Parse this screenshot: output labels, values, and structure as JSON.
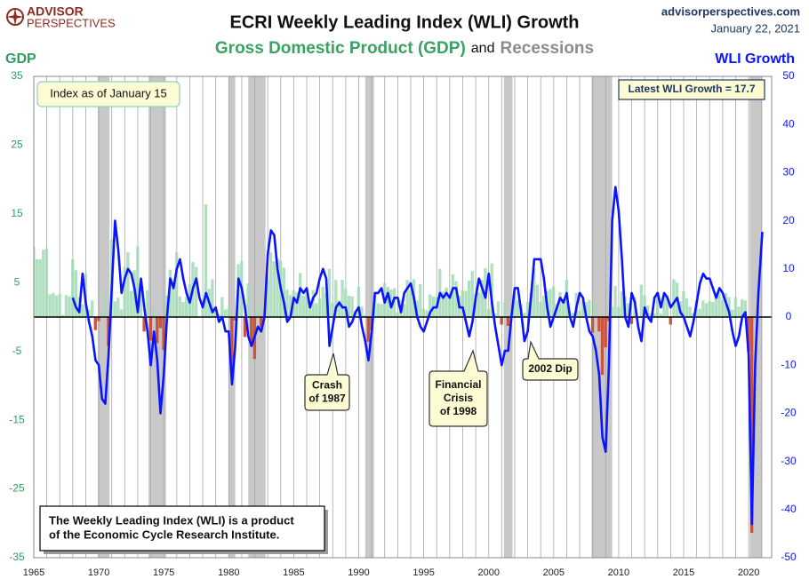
{
  "header": {
    "logo": [
      "ADVISOR",
      "PERSPECTIVES"
    ],
    "site": "advisorperspectives.com",
    "date": "January 22, 2021"
  },
  "chart_data": {
    "type": "combo",
    "title": "ECRI Weekly Leading Index (WLI) Growth",
    "subtitle": [
      "Gross Domestic Product (GDP)",
      "and",
      "Recessions"
    ],
    "xlim": [
      1965,
      2021.77
    ],
    "xticks": [
      1965,
      1970,
      1975,
      1980,
      1985,
      1990,
      1995,
      2000,
      2005,
      2010,
      2015,
      2020
    ],
    "x_grid": [
      1965,
      1966,
      1967,
      1968,
      1969,
      1970,
      1971,
      1972,
      1973,
      1974,
      1975,
      1976,
      1977,
      1978,
      1979,
      1980,
      1981,
      1982,
      1983,
      1984,
      1985,
      1986,
      1987,
      1988,
      1989,
      1990,
      1991,
      1992,
      1993,
      1994,
      1995,
      1996,
      1997,
      1998,
      1999,
      2000,
      2001,
      2002,
      2003,
      2004,
      2005,
      2006,
      2007,
      2008,
      2009,
      2010,
      2011,
      2012,
      2013,
      2014,
      2015,
      2016,
      2017,
      2018,
      2019,
      2020,
      2021
    ],
    "ylim": [
      -35,
      35
    ],
    "yticks": [
      -35,
      -25,
      -15,
      -5,
      5,
      15,
      25,
      35
    ],
    "y2lim": [
      -50,
      50
    ],
    "y2ticks": [
      -50,
      -40,
      -30,
      -20,
      -10,
      0,
      10,
      20,
      30,
      40,
      50
    ],
    "recessions": {
      "color": "#c8c8c8",
      "spans": [
        [
          1969.92,
          1970.83
        ],
        [
          1973.83,
          1975.17
        ],
        [
          1980.0,
          1980.5
        ],
        [
          1981.5,
          1982.83
        ],
        [
          1990.5,
          1991.17
        ],
        [
          2001.17,
          2001.83
        ],
        [
          2007.92,
          2009.5
        ],
        [
          2020.08,
          2021.05
        ]
      ]
    },
    "series": [
      {
        "name": "GDP",
        "type": "bar",
        "color": "#a3dbb5",
        "negative_color": "#c9553e",
        "x": [
          1965,
          1965.25,
          1965.5,
          1965.75,
          1966,
          1966.25,
          1966.5,
          1966.75,
          1967,
          1967.25,
          1967.5,
          1967.75,
          1968,
          1968.25,
          1968.5,
          1968.75,
          1969,
          1969.25,
          1969.5,
          1969.75,
          1970,
          1970.25,
          1970.5,
          1970.75,
          1971,
          1971.25,
          1971.5,
          1971.75,
          1972,
          1972.25,
          1972.5,
          1972.75,
          1973,
          1973.25,
          1973.5,
          1973.75,
          1974,
          1974.25,
          1974.5,
          1974.75,
          1975,
          1975.25,
          1975.5,
          1975.75,
          1976,
          1976.25,
          1976.5,
          1976.75,
          1977,
          1977.25,
          1977.5,
          1977.75,
          1978,
          1978.25,
          1978.5,
          1978.75,
          1979,
          1979.25,
          1979.5,
          1979.75,
          1980,
          1980.25,
          1980.5,
          1980.75,
          1981,
          1981.25,
          1981.5,
          1981.75,
          1982,
          1982.25,
          1982.5,
          1982.75,
          1983,
          1983.25,
          1983.5,
          1983.75,
          1984,
          1984.25,
          1984.5,
          1984.75,
          1985,
          1985.25,
          1985.5,
          1985.75,
          1986,
          1986.25,
          1986.5,
          1986.75,
          1987,
          1987.25,
          1987.5,
          1987.75,
          1988,
          1988.25,
          1988.5,
          1988.75,
          1989,
          1989.25,
          1989.5,
          1989.75,
          1990,
          1990.25,
          1990.5,
          1990.75,
          1991,
          1991.25,
          1991.5,
          1991.75,
          1992,
          1992.25,
          1992.5,
          1992.75,
          1993,
          1993.25,
          1993.5,
          1993.75,
          1994,
          1994.25,
          1994.5,
          1994.75,
          1995,
          1995.25,
          1995.5,
          1995.75,
          1996,
          1996.25,
          1996.5,
          1996.75,
          1997,
          1997.25,
          1997.5,
          1997.75,
          1998,
          1998.25,
          1998.5,
          1998.75,
          1999,
          1999.25,
          1999.5,
          1999.75,
          2000,
          2000.25,
          2000.5,
          2000.75,
          2001,
          2001.25,
          2001.5,
          2001.75,
          2002,
          2002.25,
          2002.5,
          2002.75,
          2003,
          2003.25,
          2003.5,
          2003.75,
          2004,
          2004.25,
          2004.5,
          2004.75,
          2005,
          2005.25,
          2005.5,
          2005.75,
          2006,
          2006.25,
          2006.5,
          2006.75,
          2007,
          2007.25,
          2007.5,
          2007.75,
          2008,
          2008.25,
          2008.5,
          2008.75,
          2009,
          2009.25,
          2009.5,
          2009.75,
          2010,
          2010.25,
          2010.5,
          2010.75,
          2011,
          2011.25,
          2011.5,
          2011.75,
          2012,
          2012.25,
          2012.5,
          2012.75,
          2013,
          2013.25,
          2013.5,
          2013.75,
          2014,
          2014.25,
          2014.5,
          2014.75,
          2015,
          2015.25,
          2015.5,
          2015.75,
          2016,
          2016.25,
          2016.5,
          2016.75,
          2017,
          2017.25,
          2017.5,
          2017.75,
          2018,
          2018.25,
          2018.5,
          2018.75,
          2019,
          2019.25,
          2019.5,
          2019.75,
          2020,
          2020.25
        ],
        "values": [
          10.2,
          8.4,
          8.4,
          9.8,
          10.0,
          3.3,
          3.5,
          3.1,
          3.4,
          0.3,
          3.2,
          3.0,
          8.4,
          6.8,
          2.9,
          1.8,
          6.3,
          1.1,
          2.4,
          -1.9,
          -0.6,
          0.6,
          3.6,
          -4.2,
          11.3,
          2.3,
          2.8,
          1.1,
          7.3,
          9.4,
          3.8,
          6.8,
          10.3,
          4.6,
          -2.1,
          3.9,
          -3.4,
          1.0,
          -3.8,
          -1.6,
          -4.8,
          3.1,
          6.9,
          5.3,
          9.4,
          3.0,
          2.2,
          2.9,
          4.8,
          8.0,
          7.3,
          0.0,
          1.3,
          16.4,
          4.1,
          5.5,
          0.8,
          0.4,
          2.9,
          1.1,
          1.3,
          -8.0,
          -0.5,
          7.7,
          8.1,
          -2.9,
          4.9,
          -4.3,
          -6.1,
          1.8,
          -1.5,
          0.2,
          5.4,
          9.4,
          8.1,
          8.5,
          8.2,
          7.2,
          4.0,
          3.2,
          3.9,
          3.6,
          6.4,
          3.1,
          3.9,
          1.6,
          3.9,
          2.0,
          2.7,
          4.4,
          3.5,
          7.0,
          2.1,
          5.4,
          2.4,
          5.4,
          4.1,
          3.1,
          3.0,
          0.8,
          4.4,
          1.5,
          0.3,
          -3.6,
          -1.9,
          3.2,
          2.0,
          1.9,
          4.9,
          4.4,
          4.0,
          4.2,
          0.7,
          2.5,
          1.9,
          5.4,
          3.9,
          5.5,
          2.4,
          4.8,
          1.2,
          1.0,
          3.3,
          3.0,
          2.9,
          7.0,
          3.7,
          4.3,
          3.1,
          6.2,
          5.2,
          3.1,
          3.9,
          3.8,
          5.3,
          6.7,
          3.4,
          3.6,
          5.4,
          7.1,
          1.2,
          7.8,
          0.5,
          2.3,
          -1.1,
          2.1,
          -1.3,
          1.1,
          3.5,
          2.4,
          1.8,
          0.6,
          2.2,
          3.5,
          7.0,
          4.7,
          2.2,
          3.1,
          3.8,
          4.1,
          4.5,
          1.9,
          3.6,
          2.6,
          5.4,
          0.9,
          0.6,
          3.5,
          0.9,
          2.3,
          2.2,
          2.5,
          -2.3,
          2.1,
          -2.1,
          -8.4,
          -4.4,
          -0.6,
          1.5,
          4.5,
          1.5,
          3.7,
          3.0,
          2.0,
          -1.0,
          2.9,
          -0.1,
          4.7,
          3.2,
          1.7,
          0.5,
          0.5,
          3.6,
          0.5,
          3.2,
          3.2,
          -1.1,
          5.5,
          5.0,
          2.3,
          3.8,
          2.7,
          1.5,
          0.6,
          2.4,
          1.2,
          2.4,
          2.0,
          2.3,
          2.2,
          3.2,
          3.5,
          2.5,
          3.5,
          2.9,
          1.1,
          2.9,
          1.5,
          2.6,
          2.4,
          -5.0,
          -31.4
        ]
      },
      {
        "name": "WLI Growth",
        "type": "line",
        "axis": "y2",
        "color": "#0a14ff",
        "x": [
          1968,
          1968.25,
          1968.5,
          1968.75,
          1969,
          1969.25,
          1969.5,
          1969.75,
          1970,
          1970.25,
          1970.5,
          1970.75,
          1971,
          1971.25,
          1971.5,
          1971.75,
          1972,
          1972.25,
          1972.5,
          1972.75,
          1973,
          1973.25,
          1973.5,
          1973.75,
          1974,
          1974.25,
          1974.5,
          1974.75,
          1975,
          1975.25,
          1975.5,
          1975.75,
          1976,
          1976.25,
          1976.5,
          1976.75,
          1977,
          1977.25,
          1977.5,
          1977.75,
          1978,
          1978.25,
          1978.5,
          1978.75,
          1979,
          1979.25,
          1979.5,
          1979.75,
          1980,
          1980.25,
          1980.5,
          1980.75,
          1981,
          1981.25,
          1981.5,
          1981.75,
          1982,
          1982.25,
          1982.5,
          1982.75,
          1983,
          1983.25,
          1983.5,
          1983.75,
          1984,
          1984.25,
          1984.5,
          1984.75,
          1985,
          1985.25,
          1985.5,
          1985.75,
          1986,
          1986.25,
          1986.5,
          1986.75,
          1987,
          1987.25,
          1987.5,
          1987.75,
          1988,
          1988.25,
          1988.5,
          1988.75,
          1989,
          1989.25,
          1989.5,
          1989.75,
          1990,
          1990.25,
          1990.5,
          1990.75,
          1991,
          1991.25,
          1991.5,
          1991.75,
          1992,
          1992.25,
          1992.5,
          1992.75,
          1993,
          1993.25,
          1993.5,
          1993.75,
          1994,
          1994.25,
          1994.5,
          1994.75,
          1995,
          1995.25,
          1995.5,
          1995.75,
          1996,
          1996.25,
          1996.5,
          1996.75,
          1997,
          1997.25,
          1997.5,
          1997.75,
          1998,
          1998.25,
          1998.5,
          1998.75,
          1999,
          1999.25,
          1999.5,
          1999.75,
          2000,
          2000.25,
          2000.5,
          2000.75,
          2001,
          2001.25,
          2001.5,
          2001.75,
          2002,
          2002.25,
          2002.5,
          2002.75,
          2003,
          2003.25,
          2003.5,
          2003.75,
          2004,
          2004.25,
          2004.5,
          2004.75,
          2005,
          2005.25,
          2005.5,
          2005.75,
          2006,
          2006.25,
          2006.5,
          2006.75,
          2007,
          2007.25,
          2007.5,
          2007.75,
          2008,
          2008.25,
          2008.5,
          2008.75,
          2009,
          2009.25,
          2009.5,
          2009.75,
          2010,
          2010.25,
          2010.5,
          2010.75,
          2011,
          2011.25,
          2011.5,
          2011.75,
          2012,
          2012.25,
          2012.5,
          2012.75,
          2013,
          2013.25,
          2013.5,
          2013.75,
          2014,
          2014.25,
          2014.5,
          2014.75,
          2015,
          2015.25,
          2015.5,
          2015.75,
          2016,
          2016.25,
          2016.5,
          2016.75,
          2017,
          2017.25,
          2017.5,
          2017.75,
          2018,
          2018.25,
          2018.5,
          2018.75,
          2019,
          2019.25,
          2019.5,
          2019.75,
          2020,
          2020.25,
          2020.5,
          2020.75,
          2021.05
        ],
        "values": [
          4,
          2,
          1,
          9,
          3,
          -1,
          -4,
          -9,
          -10,
          -17,
          -18,
          -8,
          6,
          20,
          14,
          5,
          8,
          10,
          9,
          6,
          1,
          8,
          2,
          -3,
          -10,
          -3,
          -9,
          -20,
          -12,
          0,
          8,
          6,
          10,
          12,
          8,
          5,
          3,
          6,
          8,
          4,
          2,
          5,
          3,
          1,
          2,
          -1,
          0,
          -3,
          -3,
          -14,
          -6,
          8,
          6,
          2,
          -4,
          -6,
          -4,
          -2,
          -3,
          0,
          13,
          18,
          17,
          10,
          6,
          3,
          -1,
          0,
          4,
          3,
          6,
          5,
          6,
          2,
          4,
          5,
          8,
          10,
          8,
          -6,
          -2,
          2,
          3,
          2,
          2,
          -2,
          -1,
          1,
          2,
          -2,
          -5,
          -9,
          -3,
          5,
          5,
          6,
          3,
          5,
          2,
          4,
          4,
          1,
          5,
          6,
          7,
          4,
          0,
          -2,
          -3,
          -1,
          1,
          2,
          2,
          5,
          4,
          5,
          4,
          6,
          6,
          2,
          2,
          -1,
          -4,
          -1,
          4,
          8,
          6,
          4,
          9,
          3,
          -2,
          -6,
          -10,
          -7,
          -7,
          0,
          6,
          6,
          1,
          -5,
          -3,
          4,
          12,
          12,
          12,
          8,
          2,
          -2,
          0,
          2,
          4,
          3,
          5,
          0,
          -2,
          2,
          5,
          4,
          0,
          -3,
          -4,
          -7,
          -12,
          -25,
          -28,
          -10,
          20,
          27,
          22,
          12,
          0,
          -2,
          5,
          3,
          -2,
          -5,
          2,
          0,
          -1,
          4,
          5,
          2,
          5,
          4,
          2,
          3,
          4,
          1,
          0,
          -2,
          -4,
          -1,
          3,
          7,
          9,
          8,
          8,
          6,
          4,
          6,
          5,
          3,
          1,
          -3,
          -6,
          -4,
          0,
          1,
          -8,
          -43,
          -10,
          5,
          17.7
        ]
      }
    ],
    "annotations": [
      {
        "lines": [
          "Index as of January 15"
        ]
      },
      {
        "lines": [
          "Latest WLI Growth = 17.7"
        ]
      },
      {
        "lines": [
          "Crash",
          "of 1987"
        ]
      },
      {
        "lines": [
          "Financial",
          "Crisis",
          "of 1998"
        ]
      },
      {
        "lines": [
          "2002 Dip"
        ]
      },
      {
        "lines": [
          "The Weekly Leading Index (WLI) is a product",
          "of the Economic Cycle Research Institute."
        ]
      }
    ]
  }
}
